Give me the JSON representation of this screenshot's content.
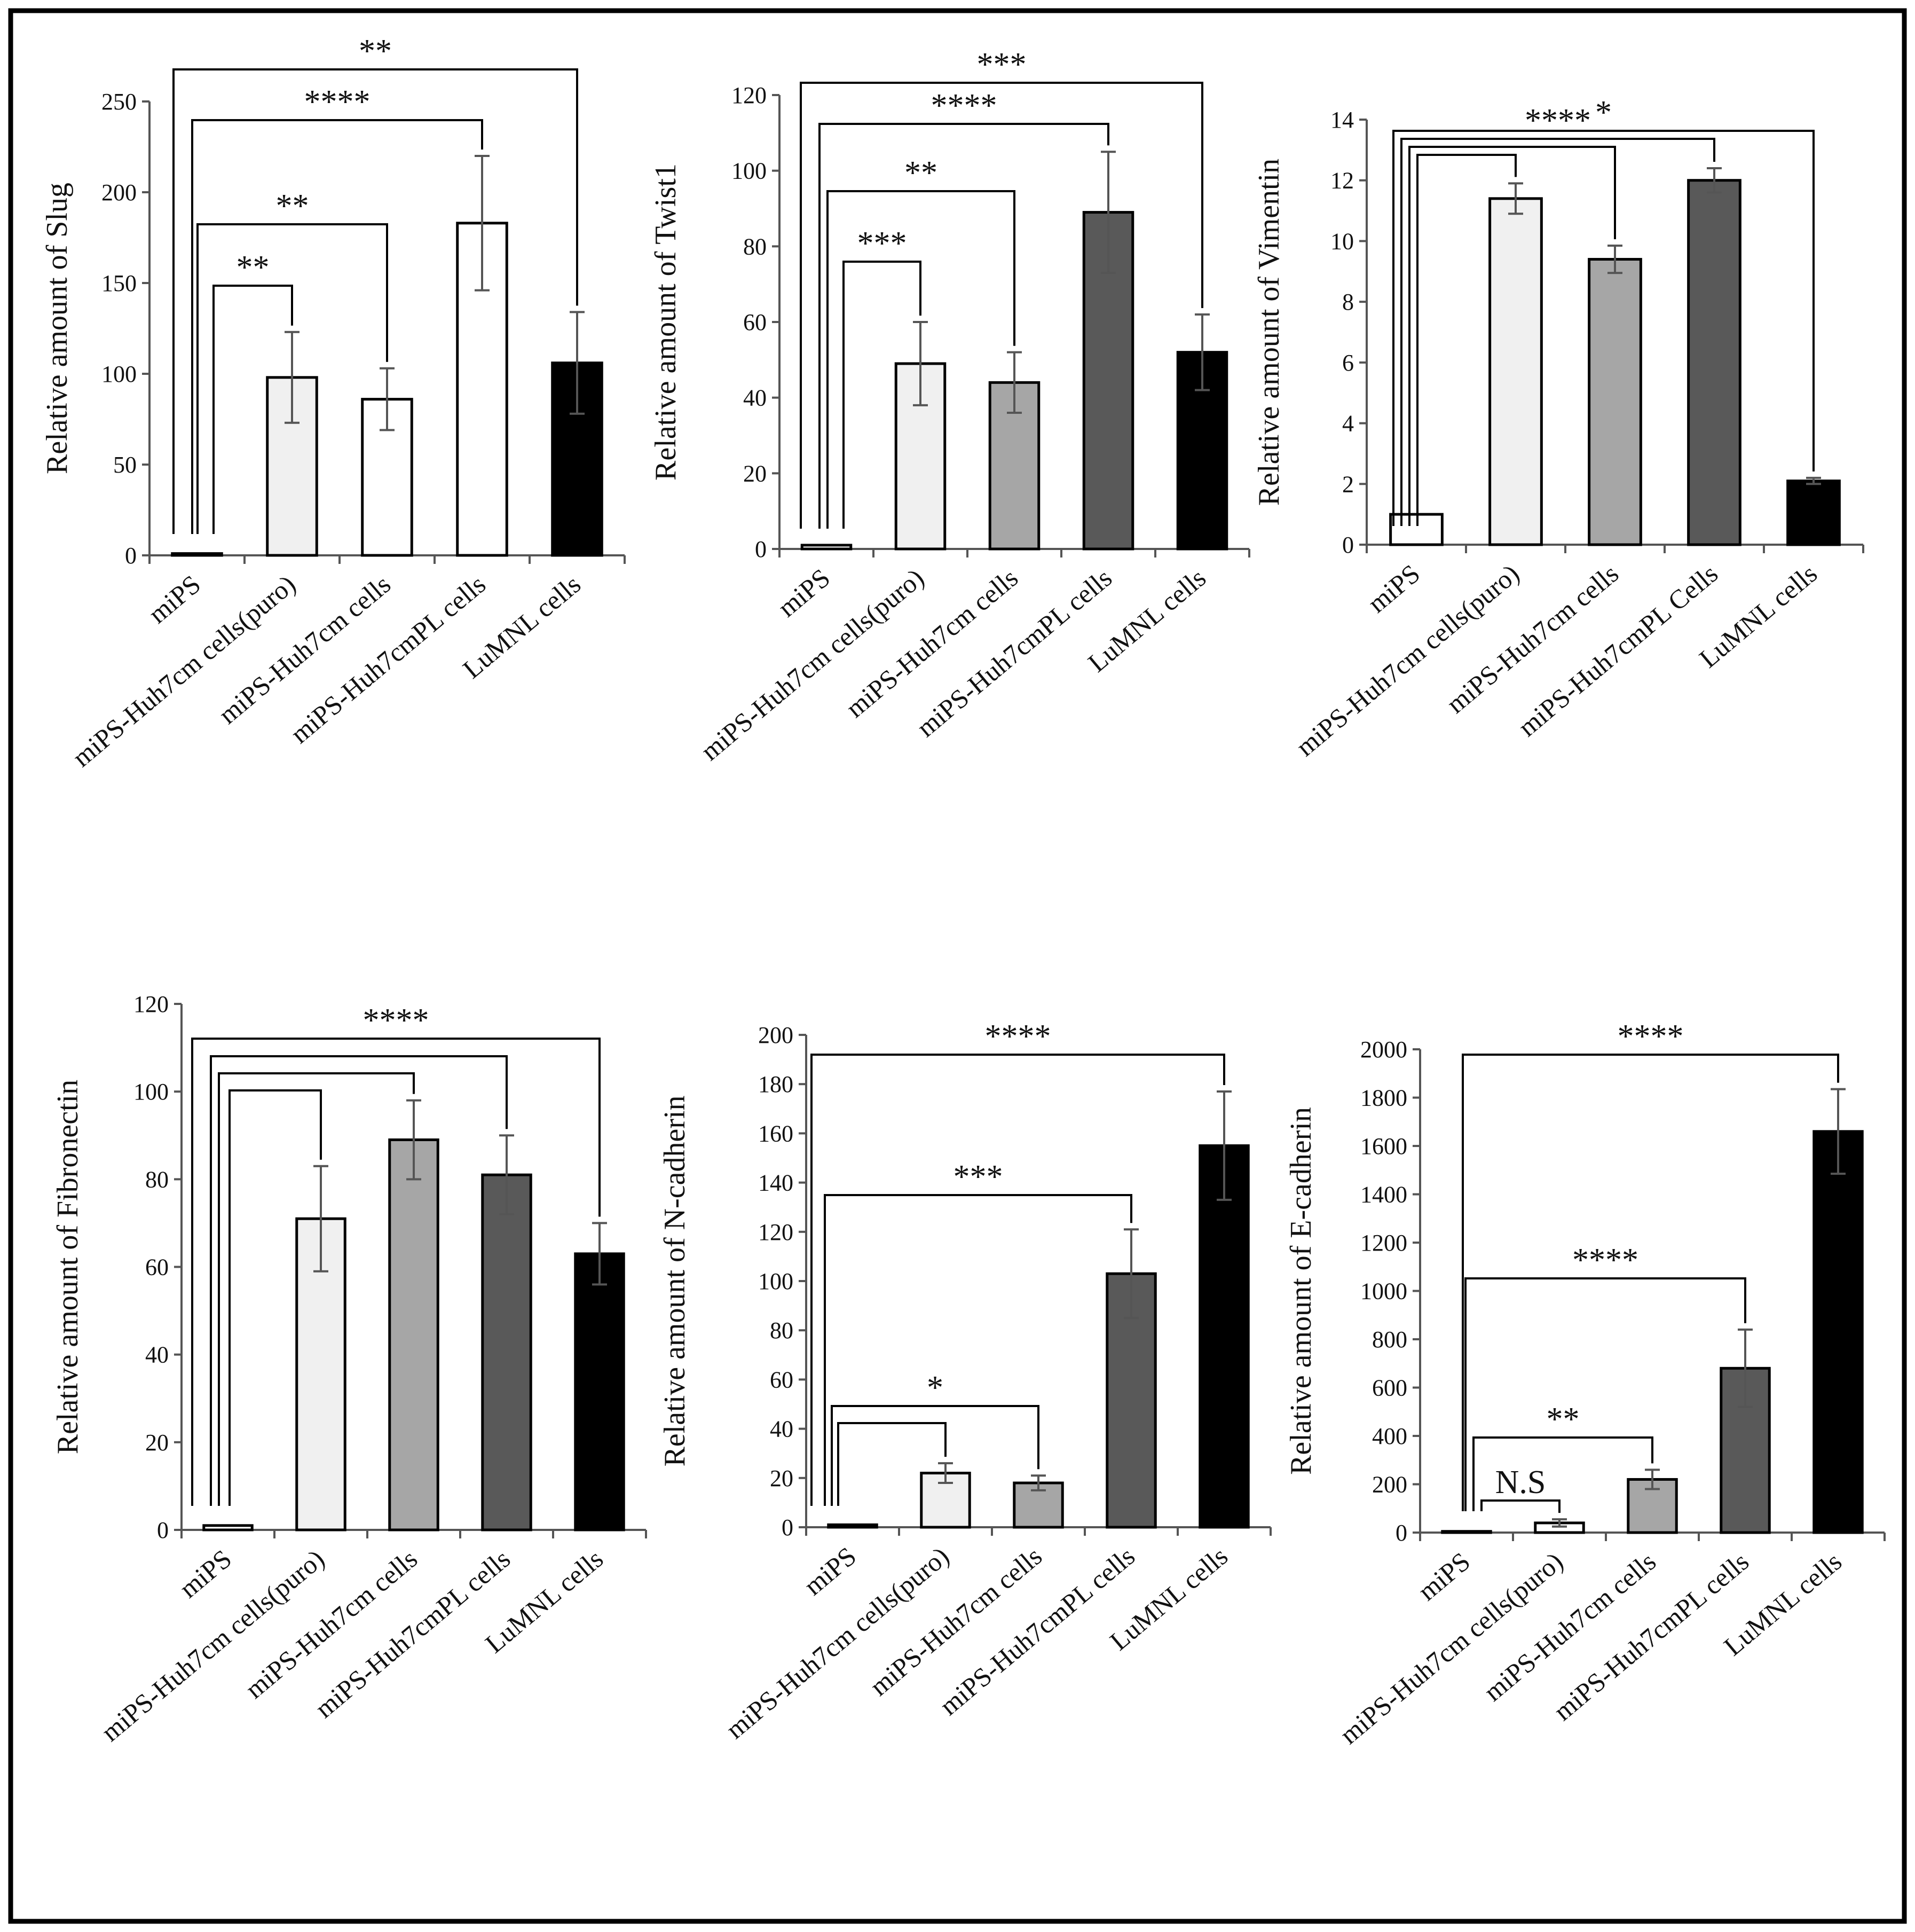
{
  "figure": {
    "description_free": true
  },
  "chart_data": [
    {
      "type": "bar",
      "panel": "slug",
      "ylabel": "Relative amount of Slug",
      "ylim": [
        0,
        250
      ],
      "yticks": [
        0,
        50,
        100,
        150,
        200,
        250
      ],
      "categories": [
        "miPS",
        "miPS-Huh7cm cells(puro)",
        "miPS-Huh7cm cells",
        "miPS-Huh7cmPL cells",
        "LuMNL cells"
      ],
      "values": [
        1,
        98,
        86,
        183,
        106
      ],
      "errors": [
        0,
        25,
        17,
        37,
        28
      ],
      "colors": [
        "#ffffff",
        "#f0f0f0",
        "#ffffff",
        "#ffffff",
        "#000000"
      ],
      "significance": [
        {
          "from": 0,
          "to": 1,
          "label": "**"
        },
        {
          "from": 0,
          "to": 2,
          "label": "**"
        },
        {
          "from": 0,
          "to": 3,
          "label": "****"
        },
        {
          "from": 0,
          "to": 4,
          "label": "**"
        }
      ]
    },
    {
      "type": "bar",
      "panel": "twist1",
      "ylabel": "Relative amount of Twist1",
      "ylim": [
        0,
        120
      ],
      "yticks": [
        0,
        20,
        40,
        60,
        80,
        100,
        120
      ],
      "categories": [
        "miPS",
        "miPS-Huh7cm cells(puro)",
        "miPS-Huh7cm cells",
        "miPS-Huh7cmPL cells",
        "LuMNL cells"
      ],
      "values": [
        1,
        49,
        44,
        89,
        52
      ],
      "errors": [
        0,
        11,
        8,
        16,
        10
      ],
      "colors": [
        "#ffffff",
        "#f0f0f0",
        "#a6a6a6",
        "#595959",
        "#000000"
      ],
      "significance": [
        {
          "from": 0,
          "to": 1,
          "label": "***"
        },
        {
          "from": 0,
          "to": 2,
          "label": "**"
        },
        {
          "from": 0,
          "to": 3,
          "label": "****"
        },
        {
          "from": 0,
          "to": 4,
          "label": "***"
        }
      ]
    },
    {
      "type": "bar",
      "panel": "vimentin",
      "ylabel": "Relative amount of Vimentin",
      "ylim": [
        0,
        14
      ],
      "yticks": [
        0,
        2,
        4,
        6,
        8,
        10,
        12,
        14
      ],
      "categories": [
        "miPS",
        "miPS-Huh7cm cells(puro)",
        "miPS-Huh7cm cells",
        "miPS-Huh7cmPL Cells",
        "LuMNL cells"
      ],
      "values": [
        1,
        11.4,
        9.4,
        12,
        2.1
      ],
      "errors": [
        0,
        0.5,
        0.45,
        0.4,
        0.1
      ],
      "colors": [
        "#ffffff",
        "#f0f0f0",
        "#a6a6a6",
        "#595959",
        "#000000"
      ],
      "significance": [
        {
          "from": 0,
          "to": 1,
          "label": ""
        },
        {
          "from": 0,
          "to": 2,
          "label": ""
        },
        {
          "from": 0,
          "to": 3,
          "label": "****"
        },
        {
          "from": 0,
          "to": 4,
          "label": "*"
        }
      ]
    },
    {
      "type": "bar",
      "panel": "fibronectin",
      "ylabel": "Relative amount of Fibronectin",
      "ylim": [
        0,
        120
      ],
      "yticks": [
        0,
        20,
        40,
        60,
        80,
        100,
        120
      ],
      "categories": [
        "miPS",
        "miPS-Huh7cm cells(puro)",
        "miPS-Huh7cm cells",
        "miPS-Huh7cmPL cells",
        "LuMNL cells"
      ],
      "values": [
        1,
        71,
        89,
        81,
        63
      ],
      "errors": [
        0,
        12,
        9,
        9,
        7
      ],
      "colors": [
        "#ffffff",
        "#f0f0f0",
        "#a6a6a6",
        "#595959",
        "#000000"
      ],
      "significance": [
        {
          "from": 0,
          "to": 1,
          "label": ""
        },
        {
          "from": 0,
          "to": 2,
          "label": ""
        },
        {
          "from": 0,
          "to": 3,
          "label": ""
        },
        {
          "from": 0,
          "to": 4,
          "label": "****"
        }
      ]
    },
    {
      "type": "bar",
      "panel": "n-cadherin",
      "ylabel": "Relative amount of N-cadherin",
      "ylim": [
        0,
        200
      ],
      "yticks": [
        0,
        20,
        40,
        60,
        80,
        100,
        120,
        140,
        160,
        180,
        200
      ],
      "categories": [
        "miPS",
        "miPS-Huh7cm cells(puro)",
        "miPS-Huh7cm cells",
        "miPS-Huh7cmPL cells",
        "LuMNL cells"
      ],
      "values": [
        1,
        22,
        18,
        103,
        155
      ],
      "errors": [
        0,
        4,
        3,
        18,
        22
      ],
      "colors": [
        "#ffffff",
        "#f0f0f0",
        "#a6a6a6",
        "#595959",
        "#000000"
      ],
      "significance": [
        {
          "from": 0,
          "to": 1,
          "label": ""
        },
        {
          "from": 0,
          "to": 2,
          "label": "*"
        },
        {
          "from": 0,
          "to": 3,
          "label": "***"
        },
        {
          "from": 0,
          "to": 4,
          "label": "****"
        }
      ]
    },
    {
      "type": "bar",
      "panel": "e-cadherin",
      "ylabel": "Relative amount of E-cadherin",
      "ylim": [
        0,
        2000
      ],
      "yticks": [
        0,
        200,
        400,
        600,
        800,
        1000,
        1200,
        1400,
        1600,
        1800,
        2000
      ],
      "categories": [
        "miPS",
        "miPS-Huh7cm cells(puro)",
        "miPS-Huh7cm cells",
        "miPS-Huh7cmPL cells",
        "LuMNL cells"
      ],
      "values": [
        5,
        40,
        220,
        680,
        1660
      ],
      "errors": [
        0,
        15,
        40,
        160,
        175
      ],
      "colors": [
        "#ffffff",
        "#ffffff",
        "#a6a6a6",
        "#595959",
        "#000000"
      ],
      "significance": [
        {
          "from": 0,
          "to": 1,
          "label": "N.S"
        },
        {
          "from": 0,
          "to": 2,
          "label": "**"
        },
        {
          "from": 0,
          "to": 3,
          "label": "****"
        },
        {
          "from": 0,
          "to": 4,
          "label": "****"
        }
      ]
    }
  ]
}
